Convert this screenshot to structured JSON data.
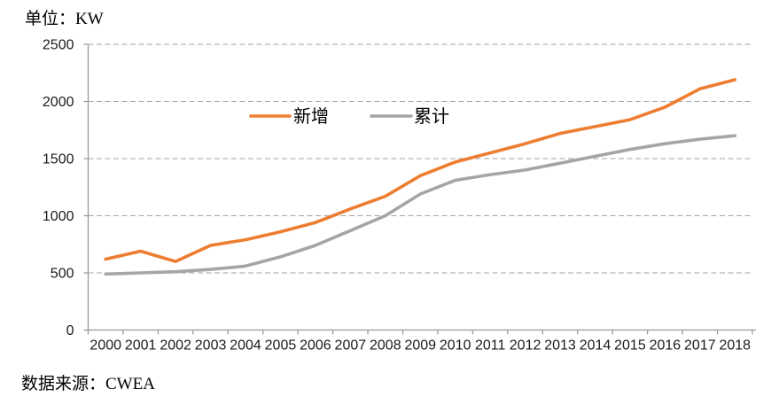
{
  "labels": {
    "unit": "单位：KW",
    "source": "数据来源：CWEA"
  },
  "chart_data": {
    "type": "line",
    "title": "",
    "xlabel": "",
    "ylabel": "KW",
    "x": [
      "2000",
      "2001",
      "2002",
      "2003",
      "2004",
      "2005",
      "2006",
      "2007",
      "2008",
      "2009",
      "2010",
      "2011",
      "2012",
      "2013",
      "2014",
      "2015",
      "2016",
      "2017",
      "2018"
    ],
    "series": [
      {
        "name": "新增",
        "color": "#ED7D31",
        "values": [
          620,
          690,
          600,
          740,
          790,
          860,
          940,
          1060,
          1170,
          1350,
          1470,
          1550,
          1630,
          1720,
          1780,
          1840,
          1950,
          2110,
          2190
        ]
      },
      {
        "name": "累计",
        "color": "#A5A5A5",
        "values": [
          490,
          500,
          510,
          530,
          560,
          640,
          740,
          870,
          1000,
          1190,
          1310,
          1360,
          1400,
          1460,
          1520,
          1580,
          1630,
          1670,
          1700
        ]
      }
    ],
    "ylim": [
      0,
      2500
    ],
    "ytick_interval": 500,
    "yticks": [
      "0",
      "500",
      "1000",
      "1500",
      "2000",
      "2500"
    ],
    "grid": "horizontal-dashed",
    "legend_position": "inside-top-center",
    "unit_label": "单位：KW",
    "source_label": "数据来源：CWEA"
  },
  "style": {
    "grid_color": "#A3A3A3",
    "axis_color": "#9B9B9B",
    "text_color": "#1A1A1A",
    "background": "#FFFFFF"
  }
}
